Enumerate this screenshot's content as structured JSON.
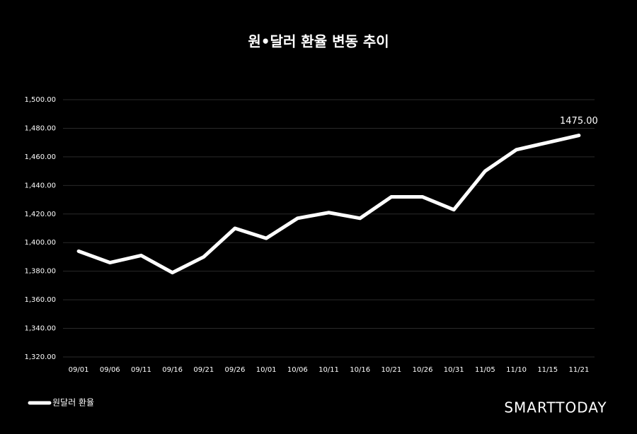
{
  "chart_data": {
    "type": "line",
    "title": "원•달러 환율 변동 추이",
    "categories": [
      "09/01",
      "09/06",
      "09/11",
      "09/16",
      "09/21",
      "09/26",
      "10/01",
      "10/06",
      "10/11",
      "10/16",
      "10/21",
      "10/26",
      "10/31",
      "11/05",
      "11/10",
      "11/15",
      "11/21"
    ],
    "series": [
      {
        "name": "원달러 환율",
        "color": "#ffffff",
        "values": [
          1394,
          1386,
          1391,
          1379,
          1390,
          1410,
          1403,
          1417,
          1421,
          1417,
          1432,
          1432,
          1423,
          1450,
          1465,
          1470,
          1475
        ],
        "value_labels": [
          null,
          null,
          null,
          null,
          null,
          null,
          null,
          null,
          null,
          null,
          null,
          null,
          null,
          null,
          null,
          null,
          "1475.00"
        ]
      }
    ],
    "ylim": [
      1320,
      1500
    ],
    "yticks": [
      {
        "value": 1320,
        "label": "1,320.00"
      },
      {
        "value": 1340,
        "label": "1,340.00"
      },
      {
        "value": 1360,
        "label": "1,360.00"
      },
      {
        "value": 1380,
        "label": "1,380.00"
      },
      {
        "value": 1400,
        "label": "1,400.00"
      },
      {
        "value": 1420,
        "label": "1,420.00"
      },
      {
        "value": 1440,
        "label": "1,440.00"
      },
      {
        "value": 1460,
        "label": "1,460.00"
      },
      {
        "value": 1480,
        "label": "1,480.00"
      },
      {
        "value": 1500,
        "label": "1,500.00"
      }
    ],
    "grid": true,
    "legend": "bottom-left",
    "watermark": "SMARTTODAY"
  }
}
